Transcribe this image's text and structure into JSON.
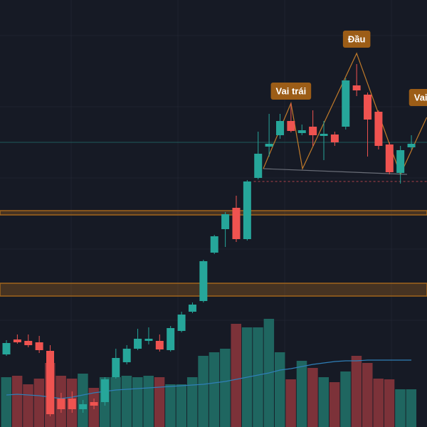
{
  "chart_data": {
    "type": "candlestick",
    "open": [
      102,
      123,
      121,
      119,
      107,
      40,
      40,
      25,
      35,
      35,
      70,
      91,
      110,
      121,
      121,
      108,
      135,
      162,
      177,
      245,
      278,
      308,
      264,
      350,
      394,
      410,
      430,
      413,
      422,
      409,
      411,
      422,
      480,
      467,
      443,
      397,
      357,
      393
    ],
    "high": [
      122,
      130,
      130,
      128,
      115,
      48,
      50,
      38,
      40,
      70,
      110,
      115,
      138,
      140,
      130,
      142,
      162,
      175,
      235,
      270,
      302,
      325,
      347,
      415,
      440,
      440,
      455,
      425,
      445,
      430,
      415,
      490,
      510,
      470,
      445,
      400,
      395,
      410
    ],
    "low": [
      100,
      117,
      112,
      104,
      15,
      20,
      20,
      20,
      25,
      30,
      68,
      88,
      108,
      116,
      106,
      106,
      133,
      160,
      175,
      243,
      253,
      260,
      262,
      348,
      380,
      405,
      414,
      410,
      395,
      375,
      395,
      418,
      465,
      380,
      390,
      355,
      342,
      390
    ],
    "close": [
      118,
      119,
      115,
      108,
      18,
      25,
      25,
      32,
      30,
      67,
      97,
      110,
      124,
      124,
      109,
      139,
      158,
      172,
      233,
      268,
      299,
      264,
      345,
      384,
      398,
      430,
      416,
      417,
      410,
      412,
      400,
      487,
      473,
      432,
      395,
      358,
      389,
      398
    ],
    "volume": [
      70,
      72,
      60,
      68,
      90,
      72,
      68,
      75,
      55,
      70,
      70,
      72,
      70,
      72,
      70,
      60,
      60,
      70,
      100,
      105,
      110,
      145,
      140,
      140,
      152,
      105,
      67,
      93,
      83,
      70,
      63,
      78,
      100,
      90,
      68,
      67,
      53,
      53
    ],
    "volume_ma": [
      45,
      46,
      45,
      44,
      42,
      40,
      42,
      45,
      48,
      50,
      52,
      53,
      54,
      55,
      56,
      57,
      58,
      59,
      60,
      62,
      64,
      67,
      70,
      73,
      76,
      80,
      82,
      85,
      88,
      90,
      92,
      93,
      93,
      94,
      94,
      94,
      94,
      94
    ],
    "ylim": [
      0,
      600
    ],
    "vlim": [
      0,
      600
    ],
    "up_color": "#26a69a",
    "down_color": "#ef5350",
    "up_volume_color": "#1f6660",
    "down_volume_color": "#7c3239",
    "volume_ma_color": "#2f7fb8",
    "zones": [
      {
        "from": 298,
        "to": 304
      },
      {
        "from": 184,
        "to": 202
      }
    ],
    "zone_color": "#a0651c",
    "level": 400,
    "level_color": "#1f5a5a",
    "support": 345,
    "support_start": 22.6,
    "support_color": "#b0414a",
    "pattern": {
      "x": [
        23.47,
        26.0,
        27.05,
        32.0,
        36.0,
        38.4
      ],
      "y": [
        363,
        455,
        363,
        525,
        355,
        435
      ],
      "color": "#c07a2a"
    },
    "neckline": {
      "x": [
        23.47,
        36.6
      ],
      "y": [
        363,
        355
      ],
      "color": "#6a6e78"
    },
    "annotations": [
      {
        "text": "Vai trái",
        "x": 26.0,
        "y": 472
      },
      {
        "text": "Đầu",
        "x": 32.0,
        "y": 545
      },
      {
        "text": "Vai",
        "x": 37.85,
        "y": 463
      }
    ],
    "annotation_color": "#9c5d17"
  }
}
